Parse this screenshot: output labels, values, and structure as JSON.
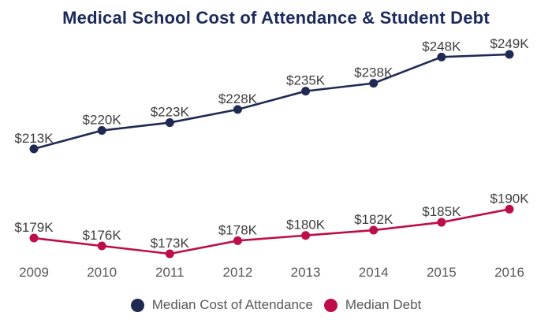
{
  "chart_data": {
    "type": "line",
    "title": "Medical School Cost of Attendance & Student Debt",
    "title_color": "#1b2a5b",
    "categories": [
      "2009",
      "2010",
      "2011",
      "2012",
      "2013",
      "2014",
      "2015",
      "2016"
    ],
    "series": [
      {
        "key": "cost",
        "name": "Median Cost of Attendance",
        "color": "#1f2a52",
        "values": [
          213,
          220,
          223,
          228,
          235,
          238,
          248,
          249
        ],
        "labels": [
          "$213K",
          "$220K",
          "$223K",
          "$228K",
          "$235K",
          "$238K",
          "$248K",
          "$249K"
        ]
      },
      {
        "key": "debt",
        "name": "Median Debt",
        "color": "#be0d4c",
        "values": [
          179,
          176,
          173,
          178,
          180,
          182,
          185,
          190
        ],
        "labels": [
          "$179K",
          "$176K",
          "$173K",
          "$178K",
          "$180K",
          "$182K",
          "$185K",
          "$190K"
        ]
      }
    ],
    "value_unit": "$K",
    "ylim": [
      173,
      249
    ],
    "grid": false,
    "axes_visible": false,
    "legend_position": "bottom",
    "axis_label_color": "#595959",
    "data_label_color": "#3d3d3d",
    "background_color": "#ffffff"
  }
}
